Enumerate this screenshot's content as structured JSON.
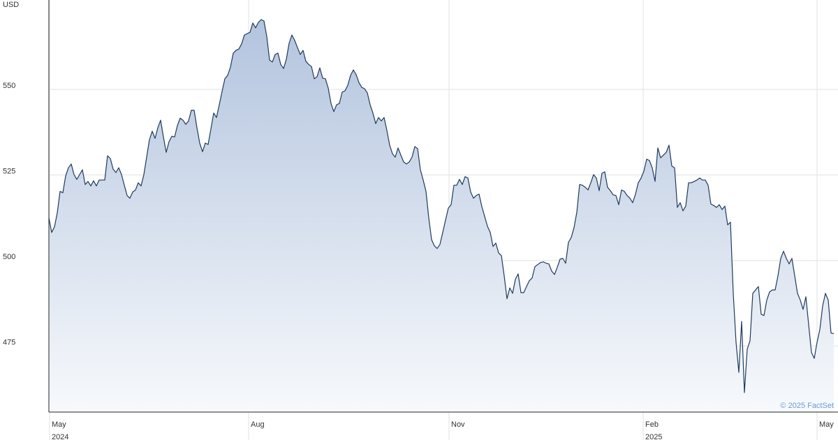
{
  "chart_data": {
    "type": "area",
    "y_unit": "USD",
    "credit": "© 2025 FactSet",
    "color": "#1f3a5c",
    "fill_top": "#b3c4de",
    "fill_bottom": "#f7f9fc",
    "grid": true,
    "xlim": [
      0,
      282
    ],
    "xticks": [
      {
        "value": 0.25,
        "label": "May"
      },
      {
        "value": 71.5,
        "label": "Aug"
      },
      {
        "value": 143.25,
        "label": "Nov"
      },
      {
        "value": 212.75,
        "label": "Feb"
      },
      {
        "value": 275,
        "label": "May"
      }
    ],
    "xtick_years": [
      "2024",
      null,
      null,
      "2025",
      null
    ],
    "ylim": [
      455.7,
      574.9
    ],
    "yticks": [
      475,
      500,
      525,
      550
    ],
    "values": [
      512.4,
      508.2,
      509.8,
      513.9,
      520.2,
      519.8,
      524.7,
      527.1,
      528.2,
      525.1,
      523.7,
      525.1,
      526.5,
      522.2,
      523.1,
      521.8,
      523.3,
      521.8,
      523.5,
      523.5,
      523.5,
      530.6,
      529.8,
      526.7,
      525.7,
      527.1,
      525.1,
      522.0,
      519.0,
      518.2,
      520.0,
      520.6,
      522.7,
      521.8,
      525.1,
      530.2,
      535.3,
      537.8,
      535.7,
      538.8,
      541.0,
      536.1,
      531.6,
      534.7,
      536.3,
      536.1,
      539.4,
      541.6,
      541.0,
      539.8,
      540.8,
      543.9,
      543.9,
      538.8,
      534.3,
      531.8,
      534.3,
      533.9,
      538.4,
      543.1,
      541.8,
      545.5,
      549.4,
      553.1,
      554.1,
      556.5,
      560.6,
      561.4,
      561.8,
      563.3,
      565.9,
      566.3,
      566.7,
      569.4,
      568.0,
      569.6,
      570.4,
      570.0,
      565.5,
      558.6,
      558.0,
      560.2,
      560.6,
      557.3,
      556.1,
      558.8,
      563.5,
      565.9,
      564.3,
      562.2,
      560.2,
      561.4,
      558.2,
      557.3,
      556.7,
      553.1,
      553.7,
      556.3,
      553.3,
      553.1,
      550.4,
      545.9,
      543.5,
      545.5,
      545.9,
      549.2,
      549.6,
      551.2,
      554.1,
      555.7,
      554.3,
      552.0,
      550.6,
      550.2,
      549.0,
      545.5,
      543.1,
      540.0,
      541.8,
      540.8,
      541.8,
      538.0,
      533.7,
      531.2,
      530.2,
      532.9,
      530.8,
      528.8,
      528.2,
      528.8,
      530.2,
      533.3,
      532.7,
      526.5,
      523.5,
      520.2,
      512.4,
      506.1,
      504.3,
      503.5,
      504.7,
      508.2,
      511.8,
      515.3,
      516.3,
      522.0,
      522.0,
      523.7,
      522.2,
      524.5,
      524.1,
      520.0,
      518.2,
      519.0,
      519.4,
      515.7,
      512.9,
      510.0,
      508.2,
      504.1,
      505.1,
      502.2,
      501.4,
      495.5,
      488.8,
      492.0,
      490.4,
      494.5,
      496.1,
      490.6,
      490.6,
      492.4,
      494.1,
      494.9,
      498.2,
      498.8,
      499.4,
      499.6,
      499.2,
      499.0,
      496.9,
      495.9,
      498.0,
      500.4,
      500.6,
      499.2,
      505.3,
      506.7,
      509.6,
      514.1,
      522.2,
      522.0,
      521.4,
      520.6,
      522.7,
      525.1,
      524.1,
      520.4,
      525.5,
      525.9,
      521.4,
      520.4,
      519.2,
      519.0,
      516.3,
      520.6,
      520.2,
      519.0,
      518.2,
      516.9,
      519.4,
      522.7,
      524.1,
      526.1,
      529.6,
      529.2,
      527.1,
      523.1,
      532.9,
      530.0,
      530.8,
      531.6,
      533.7,
      527.6,
      527.1,
      515.5,
      516.9,
      514.5,
      515.9,
      522.7,
      522.7,
      523.1,
      523.5,
      524.1,
      523.5,
      523.5,
      522.0,
      516.5,
      516.1,
      515.5,
      516.3,
      514.9,
      515.9,
      510.4,
      511.2,
      490.4,
      476.1,
      467.3,
      482.2,
      461.4,
      474.1,
      476.5,
      490.4,
      491.4,
      492.4,
      484.3,
      483.9,
      488.4,
      490.8,
      491.4,
      491.4,
      495.5,
      500.6,
      502.7,
      500.6,
      499.0,
      500.6,
      495.5,
      490.4,
      488.4,
      485.7,
      489.4,
      481.2,
      473.1,
      471.4,
      476.1,
      479.8,
      486.7,
      490.4,
      488.4,
      478.8,
      478.6
    ]
  }
}
